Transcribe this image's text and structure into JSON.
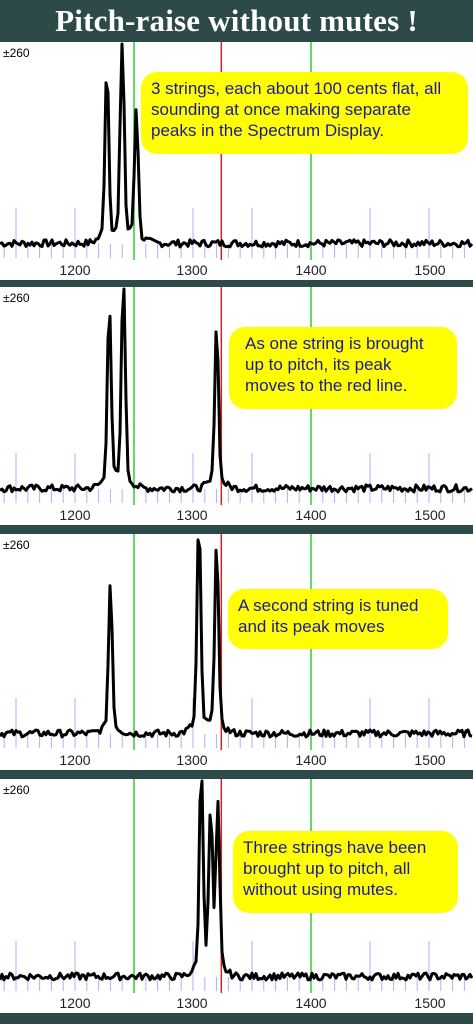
{
  "title": "Pitch-raise without mutes !",
  "y_label": "±260",
  "x_ticks": [
    "1200",
    "1300",
    "1400",
    "1500"
  ],
  "panels": [
    {
      "note": "3 strings, each about 100 cents flat, all sounding at once making separate peaks in the Spectrum Display.",
      "peaks": [
        [
          1227,
          0.82
        ],
        [
          1240,
          0.99
        ],
        [
          1252,
          0.62
        ]
      ]
    },
    {
      "note": "As one string is brought up to pitch, its peak moves to the red line.",
      "peaks": [
        [
          1229,
          0.85
        ],
        [
          1241,
          0.99
        ],
        [
          1320,
          0.76
        ]
      ]
    },
    {
      "note": "A second string is tuned and its peak moves",
      "peaks": [
        [
          1230,
          0.7
        ],
        [
          1305,
          0.99
        ],
        [
          1320,
          0.9
        ]
      ]
    },
    {
      "note": "Three strings have been brought up to pitch, all without using mutes.",
      "peaks": [
        [
          1307,
          0.99
        ],
        [
          1315,
          0.75
        ],
        [
          1321,
          0.78
        ]
      ]
    }
  ],
  "colors": {
    "red_line": "#cc2222",
    "green_line": "#33cc33",
    "grid": "#aab0ff",
    "note_bg": "#ffff00",
    "note_text": "#1a1a9e"
  }
}
